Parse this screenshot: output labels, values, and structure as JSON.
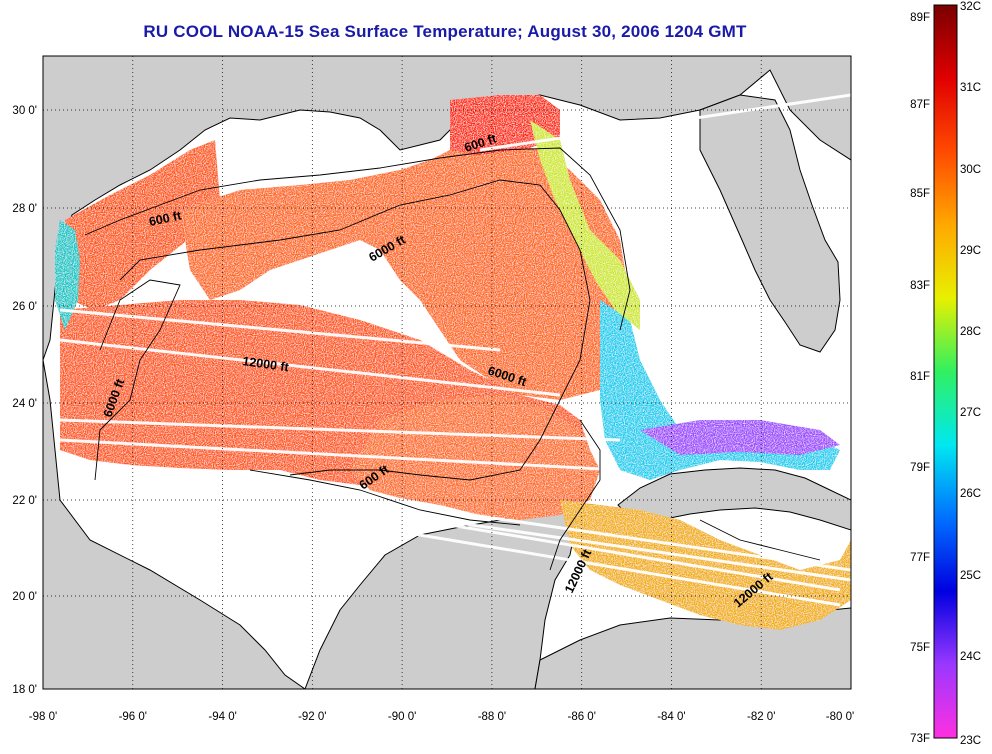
{
  "title": "RU COOL  NOAA-15  Sea Surface Temperature;  August 30, 2006 1204 GMT",
  "map": {
    "lon_range": [
      -98,
      -80
    ],
    "lat_range": [
      18,
      31
    ],
    "x_ticks": [
      "-98 0'",
      "-96 0'",
      "-94 0'",
      "-92 0'",
      "-90 0'",
      "-88 0'",
      "-86 0'",
      "-84 0'",
      "-82 0'",
      "-80 0'"
    ],
    "y_ticks": [
      "30 0'",
      "28 0'",
      "26 0'",
      "24 0'",
      "22 0'",
      "20 0'",
      "18 0'"
    ],
    "grid": "dotted",
    "land_color": "#cdcdcd",
    "no_data_color": "#ffffff",
    "contour_labels": [
      {
        "text": "600 ft"
      },
      {
        "text": "600 ft"
      },
      {
        "text": "6000 ft"
      },
      {
        "text": "12000 ft"
      },
      {
        "text": "6000 ft"
      },
      {
        "text": "6000 ft"
      },
      {
        "text": "600 ft"
      },
      {
        "text": "12000 ft"
      },
      {
        "text": "12000 ft"
      }
    ]
  },
  "colorbar": {
    "celsius_labels": [
      "32C",
      "31C",
      "30C",
      "29C",
      "28C",
      "27C",
      "26C",
      "25C",
      "24C",
      "23C"
    ],
    "fahrenheit_labels": [
      "89F",
      "87F",
      "85F",
      "83F",
      "81F",
      "79F",
      "77F",
      "75F",
      "73F"
    ],
    "range_c": [
      23,
      32
    ],
    "colors_top_to_bottom": [
      "#7a0000",
      "#ff1e00",
      "#ff7a00",
      "#f7e600",
      "#3cf25a",
      "#00e6f0",
      "#0050ff",
      "#0000dc",
      "#a040ff",
      "#ff30e0"
    ]
  }
}
